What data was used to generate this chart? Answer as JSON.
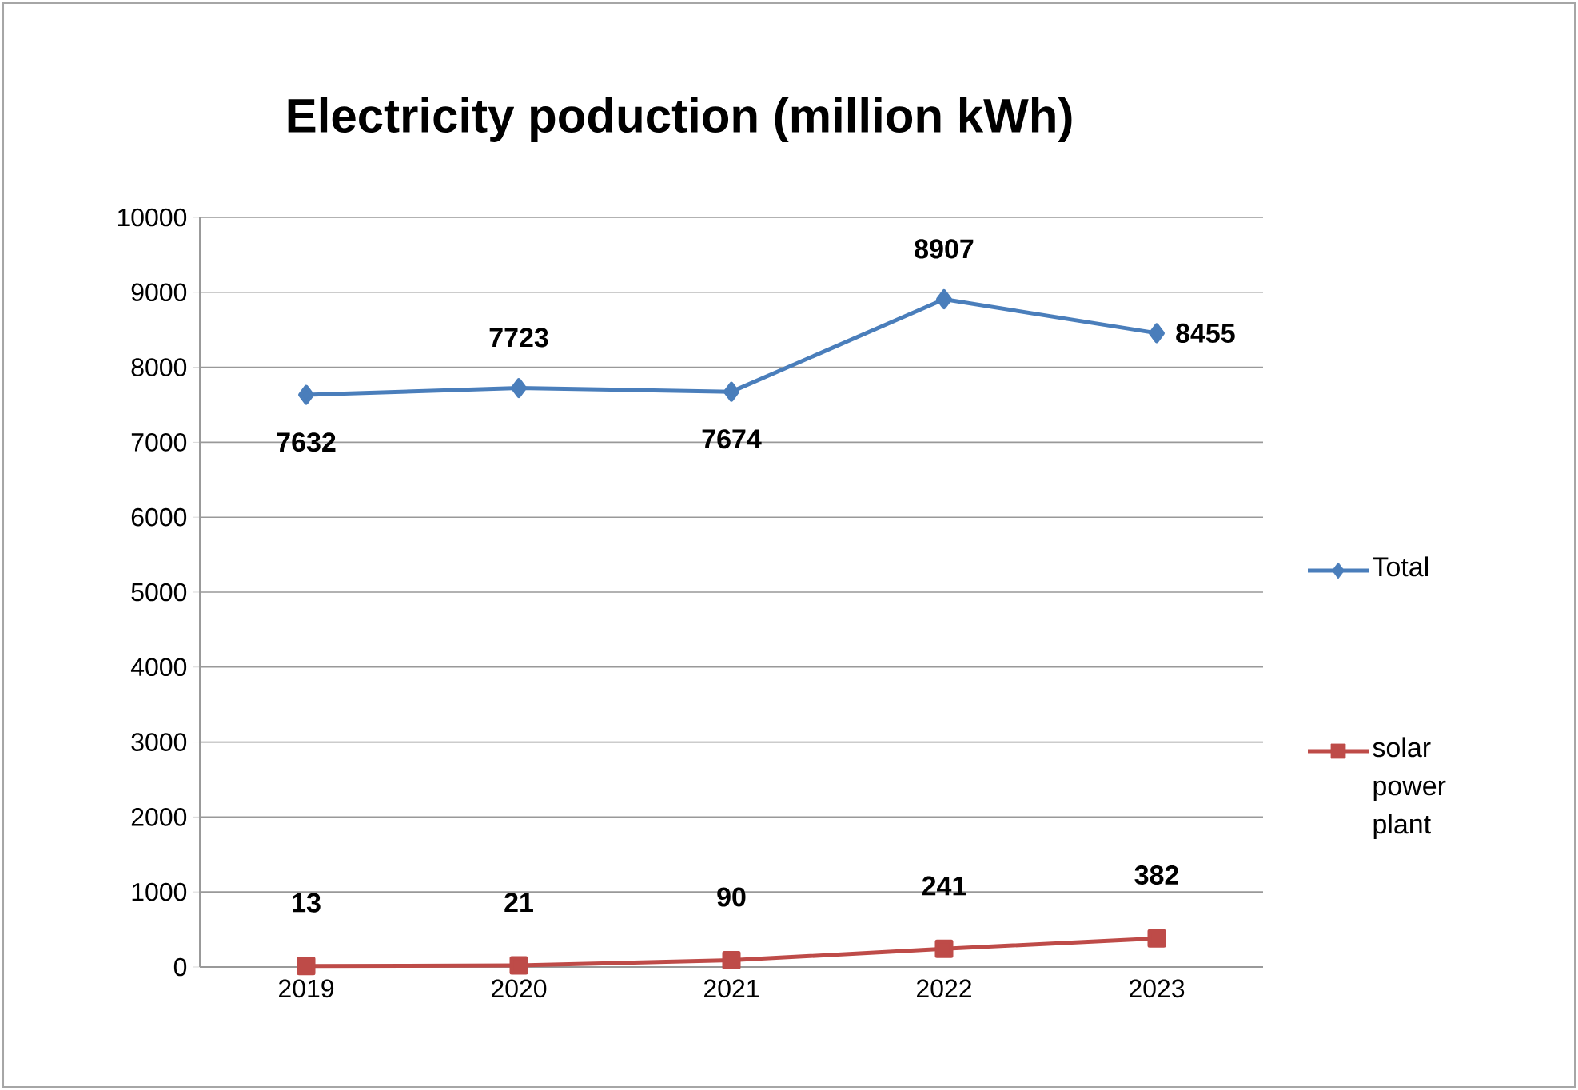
{
  "chart_data": {
    "type": "line",
    "title": "Electricity poduction (million kWh)",
    "categories": [
      "2019",
      "2020",
      "2021",
      "2022",
      "2023"
    ],
    "series": [
      {
        "name": "Total",
        "color": "#4a7ebb",
        "marker": "diamond",
        "values": [
          7632,
          7723,
          7674,
          8907,
          8455
        ]
      },
      {
        "name": "solar power plant",
        "color": "#be4b48",
        "marker": "square",
        "values": [
          13,
          21,
          90,
          241,
          382
        ]
      }
    ],
    "ylim": [
      0,
      10000
    ],
    "yticks": [
      0,
      1000,
      2000,
      3000,
      4000,
      5000,
      6000,
      7000,
      8000,
      9000,
      10000
    ],
    "grid": "y",
    "legend": "right",
    "data_labels": true
  }
}
